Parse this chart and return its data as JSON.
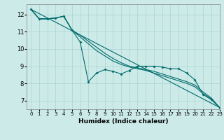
{
  "xlabel": "Humidex (Indice chaleur)",
  "background_color": "#cceae8",
  "grid_color": "#aad4d0",
  "line_color": "#006b6b",
  "xlim": [
    -0.5,
    23
  ],
  "ylim": [
    6.5,
    12.6
  ],
  "xticks": [
    0,
    1,
    2,
    3,
    4,
    5,
    6,
    7,
    8,
    9,
    10,
    11,
    12,
    13,
    14,
    15,
    16,
    17,
    18,
    19,
    20,
    21,
    22,
    23
  ],
  "yticks": [
    7,
    8,
    9,
    10,
    11,
    12
  ],
  "series": [
    {
      "x": [
        0,
        23
      ],
      "y": [
        12.3,
        6.6
      ],
      "marker": false
    },
    {
      "x": [
        0,
        1,
        2,
        3,
        4,
        5,
        6,
        7,
        8,
        9,
        10,
        11,
        12,
        13,
        14,
        15,
        16,
        17,
        18,
        19,
        20,
        21,
        22,
        23
      ],
      "y": [
        12.3,
        11.75,
        11.75,
        11.8,
        11.9,
        11.1,
        10.4,
        8.1,
        8.6,
        8.8,
        8.7,
        8.55,
        8.75,
        9.0,
        9.0,
        9.0,
        8.95,
        8.85,
        8.85,
        8.6,
        8.2,
        7.35,
        7.05,
        6.6
      ],
      "marker": true
    },
    {
      "x": [
        0,
        1,
        2,
        3,
        4,
        5,
        6,
        7,
        8,
        9,
        10,
        11,
        12,
        13,
        14,
        15,
        16,
        17,
        18,
        19,
        20,
        21,
        22,
        23
      ],
      "y": [
        12.3,
        11.75,
        11.75,
        11.8,
        11.9,
        11.1,
        10.7,
        10.3,
        9.9,
        9.6,
        9.3,
        9.1,
        8.95,
        8.85,
        8.75,
        8.6,
        8.45,
        8.3,
        8.15,
        8.0,
        7.8,
        7.4,
        7.1,
        6.6
      ],
      "marker": false
    },
    {
      "x": [
        0,
        1,
        2,
        3,
        4,
        5,
        6,
        7,
        8,
        9,
        10,
        11,
        12,
        13,
        14,
        15,
        16,
        17,
        18,
        19,
        20,
        21,
        22,
        23
      ],
      "y": [
        12.3,
        11.75,
        11.75,
        11.8,
        11.9,
        11.1,
        10.8,
        10.45,
        10.1,
        9.75,
        9.45,
        9.2,
        9.0,
        8.9,
        8.8,
        8.7,
        8.55,
        8.4,
        8.25,
        8.1,
        7.9,
        7.5,
        7.15,
        6.6
      ],
      "marker": false
    }
  ]
}
